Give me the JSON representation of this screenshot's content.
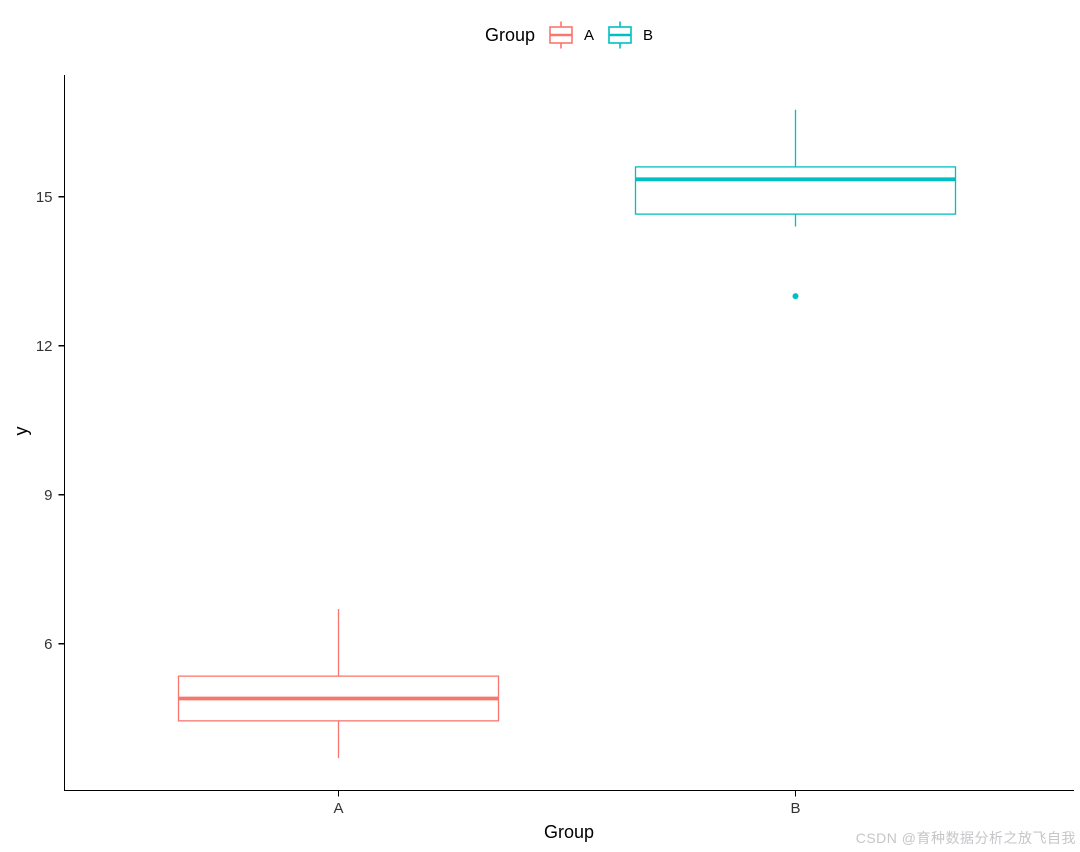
{
  "watermark": "CSDN @育种数据分析之放飞自我",
  "chart_data": {
    "type": "boxplot",
    "title": "",
    "xlabel": "Group",
    "ylabel": "y",
    "categories": [
      "A",
      "B"
    ],
    "y_ticks": [
      6,
      9,
      12,
      15
    ],
    "ylim": [
      3.05,
      17.45
    ],
    "grid": false,
    "axis_color": "#000000",
    "tick_label_color": "#333333",
    "box_fill": "#ffffff",
    "legend": {
      "title": "Group",
      "position": "top",
      "entries": [
        {
          "label": "A",
          "color": "#F8766D"
        },
        {
          "label": "B",
          "color": "#00BFC4"
        }
      ]
    },
    "series": [
      {
        "name": "A",
        "color": "#F8766D",
        "whisker_low": 3.7,
        "q1": 4.45,
        "median": 4.9,
        "q3": 5.35,
        "whisker_high": 6.7,
        "outliers": []
      },
      {
        "name": "B",
        "color": "#00BFC4",
        "whisker_low": 14.4,
        "q1": 14.65,
        "median": 15.35,
        "q3": 15.6,
        "whisker_high": 16.75,
        "outliers": [
          13.0
        ]
      }
    ]
  }
}
